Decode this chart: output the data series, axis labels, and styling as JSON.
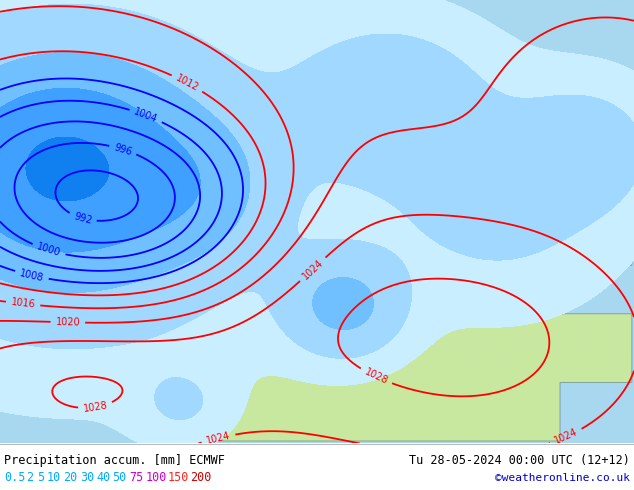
{
  "title_left": "Precipitation accum. [mm] ECMWF",
  "title_right": "Tu 28-05-2024 00:00 UTC (12+12)",
  "credit": "©weatheronline.co.uk",
  "legend_values": [
    "0.5",
    "2",
    "5",
    "10",
    "20",
    "30",
    "40",
    "50",
    "75",
    "100",
    "150",
    "200"
  ],
  "legend_text_colors": [
    "#00aaff",
    "#00aaff",
    "#00aaff",
    "#00aaff",
    "#00aaff",
    "#00aaff",
    "#00aaff",
    "#00aaff",
    "#cc00cc",
    "#cc00cc",
    "#ff2222",
    "#cc0000"
  ],
  "bg_color": "#ffffff",
  "bottom_bg": "#f0f0f0",
  "text_color": "#000000",
  "credit_color": "#0000cc",
  "figsize": [
    6.34,
    4.9
  ],
  "dpi": 100,
  "land_color": "#c8e8a0",
  "sea_color": "#a8d8f0",
  "precip_colors": [
    "#c8eeff",
    "#a0d8ff",
    "#70c0ff",
    "#40a0ff",
    "#1080f0",
    "#0060d0",
    "#6000b0",
    "#a000c0",
    "#e000e0",
    "#ff6060",
    "#ee0000",
    "#880000"
  ],
  "precip_levels": [
    0.5,
    2,
    5,
    10,
    20,
    30,
    40,
    50,
    75,
    100,
    150,
    200,
    500
  ],
  "isobar_red_levels": [
    1012,
    1016,
    1020,
    1024,
    1028
  ],
  "isobar_blue_levels": [
    992,
    996,
    1000,
    1004,
    1008
  ],
  "isobar_color_red": "#ff0000",
  "isobar_color_blue": "#0000ff",
  "isobar_lw": 1.3,
  "label_fontsize": 7
}
